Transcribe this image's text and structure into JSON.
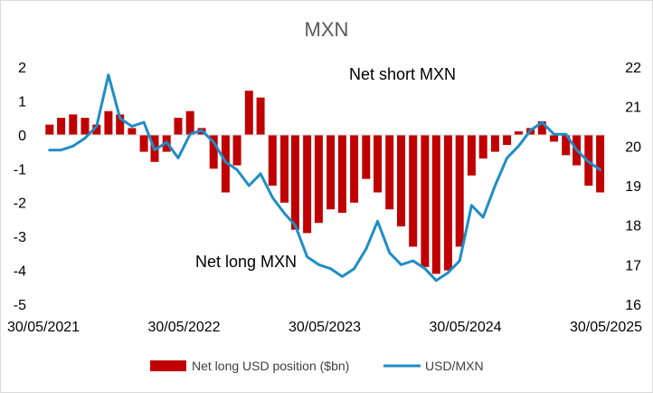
{
  "chart_data": {
    "type": "bar+line",
    "title": "MXN",
    "x_tick_labels": [
      "30/05/2021",
      "30/05/2022",
      "30/05/2023",
      "30/05/2024",
      "30/05/2025"
    ],
    "y_left": {
      "ticks": [
        "2",
        "1",
        "0",
        "-1",
        "-2",
        "-3",
        "-4",
        "-5"
      ],
      "ylim": [
        -5,
        2
      ]
    },
    "y_right": {
      "ticks": [
        "22",
        "21",
        "20",
        "19",
        "18",
        "17",
        "16"
      ],
      "ylim": [
        16,
        22
      ]
    },
    "annotations": {
      "upper": "Net short MXN",
      "lower": "Net long MXN"
    },
    "series": [
      {
        "name": "Net long USD position ($bn)",
        "type": "bar",
        "axis": "left",
        "color": "#c00000",
        "x": [
          "2021-06",
          "2021-07",
          "2021-08",
          "2021-09",
          "2021-10",
          "2021-11",
          "2021-12",
          "2022-01",
          "2022-02",
          "2022-03",
          "2022-04",
          "2022-05",
          "2022-06",
          "2022-07",
          "2022-08",
          "2022-09",
          "2022-10",
          "2022-11",
          "2022-12",
          "2023-01",
          "2023-02",
          "2023-03",
          "2023-04",
          "2023-05",
          "2023-06",
          "2023-07",
          "2023-08",
          "2023-09",
          "2023-10",
          "2023-11",
          "2023-12",
          "2024-01",
          "2024-02",
          "2024-03",
          "2024-04",
          "2024-05",
          "2024-06",
          "2024-07",
          "2024-08",
          "2024-09",
          "2024-10",
          "2024-11",
          "2024-12",
          "2025-01",
          "2025-02",
          "2025-03",
          "2025-04",
          "2025-05"
        ],
        "values": [
          0.3,
          0.5,
          0.6,
          0.5,
          0.3,
          0.7,
          0.6,
          0.2,
          -0.5,
          -0.8,
          -0.5,
          0.5,
          0.7,
          0.2,
          -1.0,
          -1.7,
          -0.9,
          1.3,
          1.1,
          -1.5,
          -2.0,
          -2.8,
          -2.9,
          -2.6,
          -2.2,
          -2.3,
          -2.0,
          -1.3,
          -1.7,
          -2.2,
          -2.7,
          -3.3,
          -3.9,
          -4.1,
          -4.0,
          -3.3,
          -1.2,
          -0.7,
          -0.5,
          -0.3,
          0.1,
          0.2,
          0.4,
          -0.2,
          -0.6,
          -0.9,
          -1.5,
          -1.7
        ]
      },
      {
        "name": "USD/MXN",
        "type": "line",
        "axis": "right",
        "color": "#1f8dc6",
        "x": [
          "2021-06",
          "2021-07",
          "2021-08",
          "2021-09",
          "2021-10",
          "2021-11",
          "2021-12",
          "2022-01",
          "2022-02",
          "2022-03",
          "2022-04",
          "2022-05",
          "2022-06",
          "2022-07",
          "2022-08",
          "2022-09",
          "2022-10",
          "2022-11",
          "2022-12",
          "2023-01",
          "2023-02",
          "2023-03",
          "2023-04",
          "2023-05",
          "2023-06",
          "2023-07",
          "2023-08",
          "2023-09",
          "2023-10",
          "2023-11",
          "2023-12",
          "2024-01",
          "2024-02",
          "2024-03",
          "2024-04",
          "2024-05",
          "2024-06",
          "2024-07",
          "2024-08",
          "2024-09",
          "2024-10",
          "2024-11",
          "2024-12",
          "2025-01",
          "2025-02",
          "2025-03",
          "2025-04",
          "2025-05"
        ],
        "values": [
          19.9,
          19.9,
          20.0,
          20.2,
          20.5,
          21.8,
          20.7,
          20.5,
          20.6,
          19.9,
          20.1,
          19.7,
          20.3,
          20.4,
          20.1,
          19.6,
          19.4,
          19.0,
          19.3,
          18.7,
          18.3,
          18.0,
          17.2,
          17.0,
          16.9,
          16.7,
          16.9,
          17.4,
          18.1,
          17.3,
          17.0,
          17.1,
          16.9,
          16.6,
          16.8,
          17.1,
          18.5,
          18.2,
          19.0,
          19.7,
          20.0,
          20.4,
          20.6,
          20.3,
          20.3,
          19.9,
          19.6,
          19.4
        ]
      }
    ]
  },
  "legend": {
    "bar_label": "Net long USD position ($bn)",
    "line_label": "USD/MXN"
  }
}
